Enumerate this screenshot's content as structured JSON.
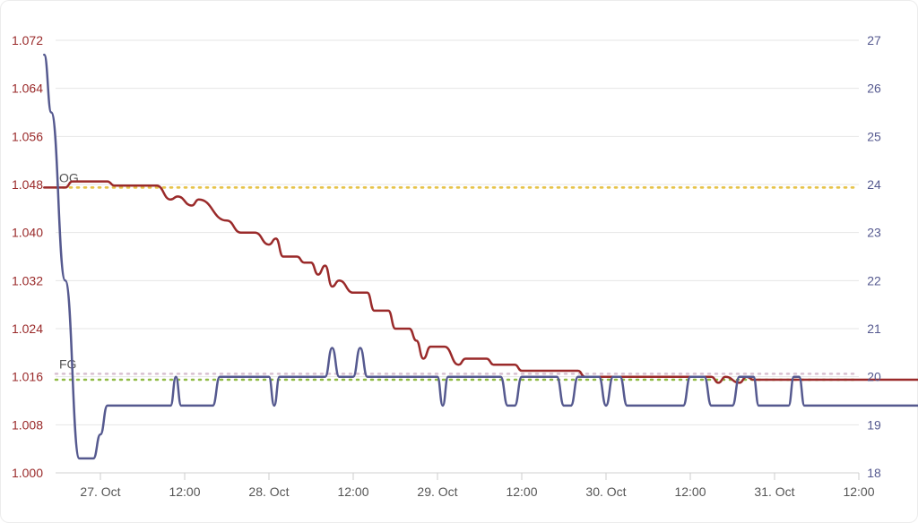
{
  "chart_data": {
    "type": "line",
    "x_range": [
      "2023-10-26T16:00",
      "2023-11-01T00:00"
    ],
    "x_ticks": [
      "27. Oct",
      "12:00",
      "28. Oct",
      "12:00",
      "29. Oct",
      "12:00",
      "30. Oct",
      "12:00",
      "31. Oct",
      "12:00"
    ],
    "y_left": {
      "ticks": [
        "1.000",
        "1.008",
        "1.016",
        "1.024",
        "1.032",
        "1.040",
        "1.048",
        "1.056",
        "1.064",
        "1.072"
      ],
      "range": [
        1.0,
        1.072
      ],
      "color": "#9a2a2a"
    },
    "y_right": {
      "ticks": [
        "18",
        "19",
        "20",
        "21",
        "22",
        "23",
        "24",
        "25",
        "26",
        "27"
      ],
      "range": [
        18,
        27
      ],
      "color": "#55598f"
    },
    "reference_lines": [
      {
        "label": "OG",
        "value": 1.0475,
        "axis": "left",
        "color": "#e6c34a"
      },
      {
        "label": "",
        "value": 1.0475,
        "axis": "left",
        "color": "#e6c34a"
      },
      {
        "label": "FG",
        "value": 1.0165,
        "axis": "left",
        "color": "#d8c0d0"
      },
      {
        "label": "",
        "value": 1.0155,
        "axis": "left",
        "color": "#8fba43"
      }
    ],
    "series": [
      {
        "axis": "left",
        "color": "#9a2a2a",
        "points": [
          [
            "2023-10-26T16:00",
            1.0475
          ],
          [
            "2023-10-26T19:00",
            1.0475
          ],
          [
            "2023-10-26T20:00",
            1.0485
          ],
          [
            "2023-10-27T01:00",
            1.0485
          ],
          [
            "2023-10-27T02:00",
            1.0478
          ],
          [
            "2023-10-27T08:00",
            1.0478
          ],
          [
            "2023-10-27T10:00",
            1.0455
          ],
          [
            "2023-10-27T11:00",
            1.046
          ],
          [
            "2023-10-27T13:00",
            1.0445
          ],
          [
            "2023-10-27T14:00",
            1.0455
          ],
          [
            "2023-10-27T18:00",
            1.042
          ],
          [
            "2023-10-27T20:00",
            1.04
          ],
          [
            "2023-10-27T22:00",
            1.04
          ],
          [
            "2023-10-28T00:00",
            1.038
          ],
          [
            "2023-10-28T01:00",
            1.039
          ],
          [
            "2023-10-28T02:00",
            1.036
          ],
          [
            "2023-10-28T04:00",
            1.036
          ],
          [
            "2023-10-28T05:00",
            1.035
          ],
          [
            "2023-10-28T06:00",
            1.035
          ],
          [
            "2023-10-28T07:00",
            1.033
          ],
          [
            "2023-10-28T08:00",
            1.0345
          ],
          [
            "2023-10-28T09:00",
            1.031
          ],
          [
            "2023-10-28T10:00",
            1.032
          ],
          [
            "2023-10-28T12:00",
            1.03
          ],
          [
            "2023-10-28T14:00",
            1.03
          ],
          [
            "2023-10-28T15:00",
            1.027
          ],
          [
            "2023-10-28T17:00",
            1.027
          ],
          [
            "2023-10-28T18:00",
            1.024
          ],
          [
            "2023-10-28T20:00",
            1.024
          ],
          [
            "2023-10-28T21:00",
            1.022
          ],
          [
            "2023-10-28T22:00",
            1.019
          ],
          [
            "2023-10-28T23:00",
            1.021
          ],
          [
            "2023-10-29T01:00",
            1.021
          ],
          [
            "2023-10-29T03:00",
            1.018
          ],
          [
            "2023-10-29T04:00",
            1.019
          ],
          [
            "2023-10-29T07:00",
            1.019
          ],
          [
            "2023-10-29T08:00",
            1.018
          ],
          [
            "2023-10-29T11:00",
            1.018
          ],
          [
            "2023-10-29T12:00",
            1.017
          ],
          [
            "2023-10-29T20:00",
            1.017
          ],
          [
            "2023-10-29T21:00",
            1.016
          ],
          [
            "2023-10-30T15:00",
            1.016
          ],
          [
            "2023-10-30T16:00",
            1.015
          ],
          [
            "2023-10-30T17:00",
            1.016
          ],
          [
            "2023-10-30T19:00",
            1.015
          ],
          [
            "2023-10-30T20:00",
            1.016
          ],
          [
            "2023-10-30T21:00",
            1.0155
          ],
          [
            "2023-10-31T21:00",
            1.0155
          ]
        ]
      },
      {
        "axis": "right",
        "color": "#55598f",
        "points": [
          [
            "2023-10-26T16:00",
            26.7
          ],
          [
            "2023-10-26T17:00",
            25.5
          ],
          [
            "2023-10-26T19:00",
            22.0
          ],
          [
            "2023-10-26T21:00",
            18.3
          ],
          [
            "2023-10-26T23:00",
            18.3
          ],
          [
            "2023-10-27T00:00",
            18.8
          ],
          [
            "2023-10-27T01:00",
            19.4
          ],
          [
            "2023-10-27T10:00",
            19.4
          ],
          [
            "2023-10-27T10:45",
            20.0
          ],
          [
            "2023-10-27T11:30",
            19.4
          ],
          [
            "2023-10-27T16:00",
            19.4
          ],
          [
            "2023-10-27T17:00",
            20.0
          ],
          [
            "2023-10-28T00:00",
            20.0
          ],
          [
            "2023-10-28T00:45",
            19.4
          ],
          [
            "2023-10-28T01:30",
            20.0
          ],
          [
            "2023-10-28T08:00",
            20.0
          ],
          [
            "2023-10-28T09:00",
            20.6
          ],
          [
            "2023-10-28T10:00",
            20.0
          ],
          [
            "2023-10-28T12:00",
            20.0
          ],
          [
            "2023-10-28T13:00",
            20.6
          ],
          [
            "2023-10-28T14:00",
            20.0
          ],
          [
            "2023-10-29T00:00",
            20.0
          ],
          [
            "2023-10-29T00:45",
            19.4
          ],
          [
            "2023-10-29T01:30",
            20.0
          ],
          [
            "2023-10-29T09:00",
            20.0
          ],
          [
            "2023-10-29T10:00",
            19.4
          ],
          [
            "2023-10-29T11:00",
            19.4
          ],
          [
            "2023-10-29T12:00",
            20.0
          ],
          [
            "2023-10-29T17:00",
            20.0
          ],
          [
            "2023-10-29T18:00",
            19.4
          ],
          [
            "2023-10-29T19:00",
            19.4
          ],
          [
            "2023-10-29T20:00",
            20.0
          ],
          [
            "2023-10-29T23:00",
            20.0
          ],
          [
            "2023-10-30T00:00",
            19.4
          ],
          [
            "2023-10-30T01:00",
            20.0
          ],
          [
            "2023-10-30T02:00",
            20.0
          ],
          [
            "2023-10-30T03:00",
            19.4
          ],
          [
            "2023-10-30T11:00",
            19.4
          ],
          [
            "2023-10-30T12:00",
            20.0
          ],
          [
            "2023-10-30T14:00",
            20.0
          ],
          [
            "2023-10-30T15:00",
            19.4
          ],
          [
            "2023-10-30T18:00",
            19.4
          ],
          [
            "2023-10-30T19:00",
            20.0
          ],
          [
            "2023-10-30T21:00",
            20.0
          ],
          [
            "2023-10-30T21:45",
            19.4
          ],
          [
            "2023-10-31T02:00",
            19.4
          ],
          [
            "2023-10-31T02:45",
            20.0
          ],
          [
            "2023-10-31T03:30",
            20.0
          ],
          [
            "2023-10-31T04:15",
            19.4
          ],
          [
            "2023-10-31T21:00",
            19.4
          ]
        ]
      }
    ]
  }
}
